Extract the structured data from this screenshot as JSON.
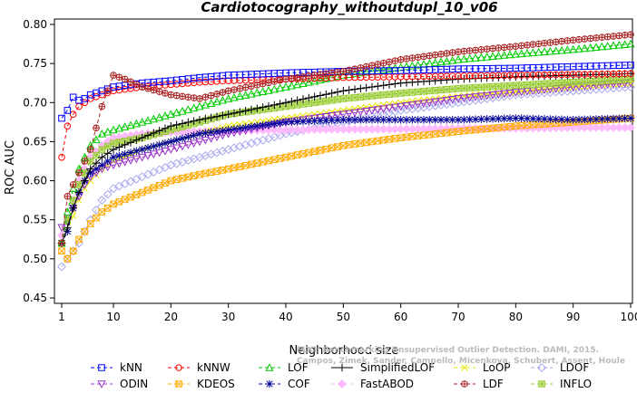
{
  "chart_data": {
    "type": "line",
    "title": "Cardiotocography_withoutdupl_10_v06",
    "xlabel": "Neighborhood size",
    "ylabel": "ROC AUC",
    "xlim": [
      1,
      100
    ],
    "ylim": [
      0.45,
      0.8
    ],
    "xticks": [
      1,
      10,
      20,
      30,
      40,
      50,
      60,
      70,
      80,
      90,
      100
    ],
    "yticks": [
      0.45,
      0.5,
      0.55,
      0.6,
      0.65,
      0.7,
      0.75,
      0.8
    ],
    "grid": false,
    "legend_position": "bottom",
    "watermark": "ELKI: Benchmarking Unsupervised Outlier Detection. DAMI, 2015.\nCampos, Zimek, Sander, Campello, Micenkova, Schubert, Assent, Houle",
    "series": [
      {
        "name": "kNN",
        "color": "#0000ff",
        "marker": "square",
        "dash": "4,3",
        "x": [
          1,
          2,
          3,
          4,
          5,
          6,
          8,
          10,
          15,
          20,
          25,
          30,
          40,
          50,
          60,
          70,
          80,
          90,
          100
        ],
        "y": [
          0.68,
          0.69,
          0.707,
          0.703,
          0.705,
          0.71,
          0.715,
          0.72,
          0.725,
          0.728,
          0.732,
          0.735,
          0.738,
          0.74,
          0.741,
          0.743,
          0.744,
          0.746,
          0.748
        ]
      },
      {
        "name": "kNNW",
        "color": "#ff0000",
        "marker": "circle",
        "dash": "4,3",
        "x": [
          1,
          2,
          3,
          4,
          5,
          6,
          8,
          10,
          15,
          20,
          25,
          30,
          40,
          50,
          60,
          70,
          80,
          90,
          100
        ],
        "y": [
          0.63,
          0.67,
          0.685,
          0.695,
          0.7,
          0.705,
          0.71,
          0.715,
          0.72,
          0.723,
          0.726,
          0.728,
          0.73,
          0.732,
          0.733,
          0.734,
          0.735,
          0.736,
          0.737
        ]
      },
      {
        "name": "LOF",
        "color": "#00cc00",
        "marker": "triangle",
        "dash": "4,3",
        "x": [
          1,
          2,
          3,
          4,
          5,
          6,
          8,
          10,
          15,
          20,
          25,
          30,
          40,
          50,
          60,
          70,
          80,
          90,
          100
        ],
        "y": [
          0.52,
          0.56,
          0.59,
          0.615,
          0.63,
          0.645,
          0.66,
          0.665,
          0.675,
          0.685,
          0.695,
          0.705,
          0.72,
          0.735,
          0.745,
          0.755,
          0.762,
          0.768,
          0.775
        ]
      },
      {
        "name": "SimplifiedLOF",
        "color": "#000000",
        "marker": "plus",
        "dash": "",
        "x": [
          1,
          2,
          3,
          4,
          5,
          6,
          8,
          10,
          15,
          20,
          25,
          30,
          40,
          50,
          60,
          70,
          80,
          90,
          100
        ],
        "y": [
          0.52,
          0.54,
          0.565,
          0.585,
          0.6,
          0.615,
          0.63,
          0.64,
          0.655,
          0.67,
          0.678,
          0.685,
          0.7,
          0.715,
          0.725,
          0.73,
          0.733,
          0.735,
          0.737
        ]
      },
      {
        "name": "LoOP",
        "color": "#e6e600",
        "marker": "cross",
        "dash": "4,3",
        "x": [
          1,
          2,
          3,
          4,
          5,
          6,
          8,
          10,
          15,
          20,
          25,
          30,
          40,
          50,
          60,
          70,
          80,
          90,
          100
        ],
        "y": [
          0.52,
          0.535,
          0.555,
          0.575,
          0.59,
          0.6,
          0.615,
          0.625,
          0.64,
          0.65,
          0.66,
          0.67,
          0.68,
          0.69,
          0.7,
          0.708,
          0.714,
          0.72,
          0.725
        ]
      },
      {
        "name": "LDOF",
        "color": "#aaaaee",
        "marker": "diamond",
        "dash": "4,3",
        "x": [
          1,
          2,
          3,
          4,
          5,
          6,
          8,
          10,
          15,
          20,
          25,
          30,
          40,
          50,
          60,
          70,
          80,
          90,
          100
        ],
        "y": [
          0.49,
          0.5,
          0.51,
          0.52,
          0.535,
          0.55,
          0.575,
          0.59,
          0.605,
          0.62,
          0.63,
          0.64,
          0.66,
          0.675,
          0.69,
          0.7,
          0.71,
          0.715,
          0.72
        ]
      },
      {
        "name": "ODIN",
        "color": "#9933cc",
        "marker": "triangle-down",
        "dash": "4,3",
        "x": [
          1,
          2,
          3,
          4,
          5,
          6,
          8,
          10,
          15,
          20,
          25,
          30,
          40,
          50,
          60,
          70,
          80,
          90,
          100
        ],
        "y": [
          0.54,
          0.55,
          0.565,
          0.58,
          0.595,
          0.605,
          0.615,
          0.62,
          0.63,
          0.64,
          0.65,
          0.66,
          0.675,
          0.685,
          0.695,
          0.705,
          0.713,
          0.72,
          0.725
        ]
      },
      {
        "name": "KDEOS",
        "color": "#ffaa00",
        "marker": "square-x",
        "dash": "4,3",
        "x": [
          1,
          2,
          3,
          4,
          5,
          6,
          8,
          10,
          15,
          20,
          25,
          30,
          40,
          50,
          60,
          70,
          80,
          90,
          100
        ],
        "y": [
          0.51,
          0.5,
          0.51,
          0.525,
          0.535,
          0.545,
          0.56,
          0.57,
          0.585,
          0.6,
          0.608,
          0.615,
          0.63,
          0.645,
          0.655,
          0.663,
          0.67,
          0.675,
          0.68
        ]
      },
      {
        "name": "COF",
        "color": "#000099",
        "marker": "asterisk",
        "dash": "4,3",
        "x": [
          1,
          2,
          3,
          4,
          5,
          6,
          8,
          10,
          15,
          20,
          25,
          30,
          40,
          50,
          60,
          70,
          80,
          90,
          100
        ],
        "y": [
          0.52,
          0.535,
          0.565,
          0.585,
          0.6,
          0.61,
          0.62,
          0.63,
          0.64,
          0.65,
          0.66,
          0.665,
          0.675,
          0.678,
          0.678,
          0.678,
          0.68,
          0.678,
          0.68
        ]
      },
      {
        "name": "FastABOD",
        "color": "#ffbbff",
        "marker": "diamond-filled",
        "dash": "4,3",
        "x": [
          1,
          2,
          3,
          4,
          5,
          6,
          8,
          10,
          15,
          20,
          25,
          30,
          40,
          50,
          60,
          70,
          80,
          90,
          100
        ],
        "y": [
          0.53,
          0.55,
          0.575,
          0.6,
          0.615,
          0.63,
          0.645,
          0.655,
          0.66,
          0.662,
          0.663,
          0.664,
          0.665,
          0.666,
          0.666,
          0.667,
          0.667,
          0.668,
          0.668
        ]
      },
      {
        "name": "LDF",
        "color": "#aa2222",
        "marker": "circle-plus",
        "dash": "4,3",
        "x": [
          1,
          2,
          3,
          4,
          5,
          6,
          8,
          10,
          12,
          15,
          20,
          25,
          30,
          40,
          50,
          60,
          70,
          80,
          90,
          100
        ],
        "y": [
          0.52,
          0.58,
          0.595,
          0.61,
          0.625,
          0.64,
          0.695,
          0.735,
          0.73,
          0.72,
          0.71,
          0.705,
          0.715,
          0.73,
          0.74,
          0.755,
          0.765,
          0.772,
          0.78,
          0.787
        ]
      },
      {
        "name": "INFLO",
        "color": "#99cc33",
        "marker": "square-asterisk",
        "dash": "4,3",
        "x": [
          1,
          2,
          3,
          4,
          5,
          6,
          8,
          10,
          15,
          20,
          25,
          30,
          40,
          50,
          60,
          70,
          80,
          90,
          100
        ],
        "y": [
          0.52,
          0.55,
          0.575,
          0.595,
          0.61,
          0.625,
          0.64,
          0.648,
          0.655,
          0.665,
          0.675,
          0.685,
          0.695,
          0.705,
          0.712,
          0.718,
          0.722,
          0.726,
          0.73
        ]
      }
    ]
  }
}
